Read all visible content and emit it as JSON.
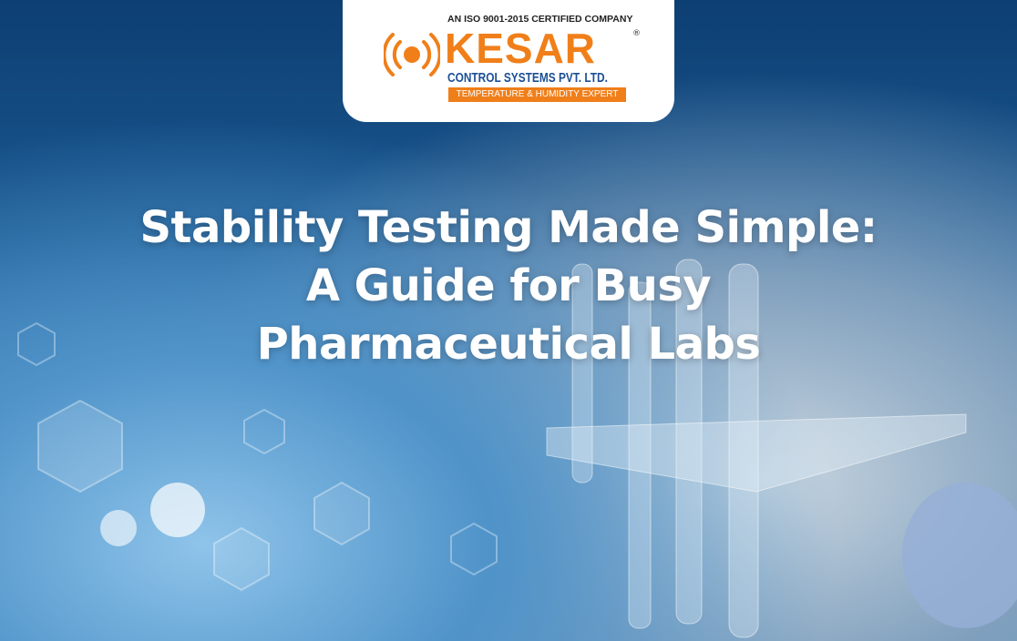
{
  "logo": {
    "iso": "AN ISO 9001-2015 CERTIFIED COMPANY",
    "brand": "KESAR",
    "registered": "®",
    "company": "CONTROL SYSTEMS PVT. LTD.",
    "tagline": "TEMPERATURE & HUMIDITY EXPERT",
    "colors": {
      "orange": "#f07f1a",
      "blue": "#1b4f95"
    }
  },
  "headline": {
    "line1": "Stability Testing Made Simple:",
    "line2": "A Guide for Busy",
    "line3": "Pharmaceutical Labs"
  }
}
